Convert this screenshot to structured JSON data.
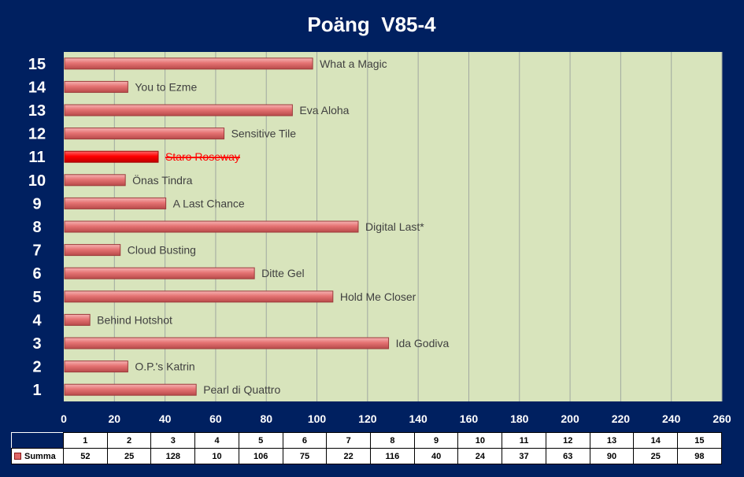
{
  "chart_data": {
    "type": "bar",
    "orientation": "horizontal",
    "title": "Poäng  V85-4",
    "categories": [
      "1",
      "2",
      "3",
      "4",
      "5",
      "6",
      "7",
      "8",
      "9",
      "10",
      "11",
      "12",
      "13",
      "14",
      "15"
    ],
    "bar_labels": [
      "Pearl di Quattro",
      "O.P.'s Katrin",
      "Ida Godiva",
      "Behind Hotshot",
      "Hold Me Closer",
      "Ditte Gel",
      "Cloud Busting",
      "Digital Last*",
      "A Last Chance",
      "Önas Tindra",
      "Staro Roseway",
      "Sensitive Tile",
      "Eva Aloha",
      "You to Ezme",
      "What a Magic"
    ],
    "series": [
      {
        "name": "Summa",
        "values": [
          52,
          25,
          128,
          10,
          106,
          75,
          22,
          116,
          40,
          24,
          37,
          63,
          90,
          25,
          98
        ]
      }
    ],
    "xlim": [
      0,
      260
    ],
    "xticks": [
      "0",
      "20",
      "40",
      "60",
      "80",
      "100",
      "120",
      "140",
      "160",
      "180",
      "200",
      "220",
      "240",
      "260"
    ],
    "highlighted_category": "11",
    "struck_label_category": "11",
    "grid": true,
    "legend": "data-table-bottom",
    "colors": {
      "background": "#002060",
      "plot_area": "#d8e4bc",
      "bar": "#e57373",
      "bar_highlight": "#ff0000",
      "label_strike": "#ff0000",
      "text_light": "#ffffff",
      "text_dark": "#404040"
    }
  }
}
